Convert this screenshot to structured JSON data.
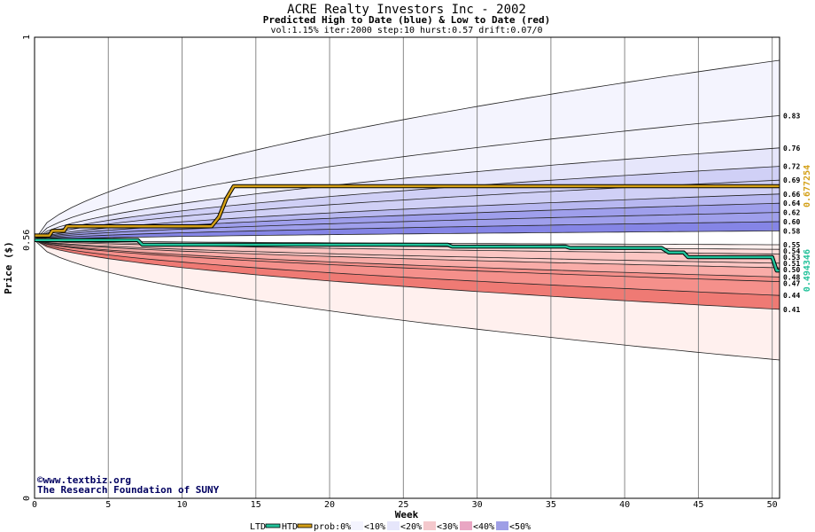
{
  "chart_data": {
    "type": "area",
    "title": "ACRE Realty Investors Inc - 2002",
    "subtitle": "Predicted High to Date (blue) &  Low to Date (red)",
    "params": "vol:1.15% iter:2000 step:10 hurst:0.57 drift:0.07/0",
    "xlabel": "Week",
    "ylabel": "Price ($)",
    "xlim": [
      0,
      50.5
    ],
    "ylim": [
      0,
      1
    ],
    "x_ticks": [
      0,
      5,
      10,
      15,
      20,
      25,
      30,
      35,
      40,
      45,
      50
    ],
    "y_ticks": [
      {
        "value": 0,
        "label": "0"
      },
      {
        "value": 0.56,
        "label": "0.56"
      },
      {
        "value": 1,
        "label": "1"
      }
    ],
    "start_value": 0.56,
    "grid": true,
    "band_levels_upper": [
      0.83,
      0.76,
      0.72,
      0.69,
      0.66,
      0.64,
      0.62,
      0.6,
      0.58
    ],
    "band_levels_lower": [
      0.55,
      0.54,
      0.53,
      0.51,
      0.5,
      0.48,
      0.47,
      0.44,
      0.41
    ],
    "band_labels_upper": [
      "0.83",
      "0.76",
      "0.72",
      "0.69",
      "0.66",
      "0.64",
      "0.62",
      "0.60",
      "0.58"
    ],
    "band_labels_lower": [
      "0.55",
      "0.54",
      "0.53",
      "0.51",
      "0.50",
      "0.48",
      "0.47",
      "0.44",
      "0.41"
    ],
    "outer_envelope": {
      "upper_end": 0.95,
      "lower_end": 0.3
    },
    "series": [
      {
        "name": "HTD",
        "color": "#d4a017",
        "x": [
          0,
          1,
          1.2,
          2,
          2.2,
          12,
          12.5,
          13,
          13.5,
          50.5
        ],
        "values": [
          0.57,
          0.57,
          0.58,
          0.58,
          0.59,
          0.59,
          0.61,
          0.65,
          0.677,
          0.677
        ],
        "end_label": "0.677254"
      },
      {
        "name": "LTD",
        "color": "#22c29a",
        "x": [
          0,
          7,
          7.3,
          28,
          28.3,
          36,
          36.3,
          42.5,
          43,
          44,
          44.3,
          50,
          50.3,
          50.5
        ],
        "values": [
          0.56,
          0.56,
          0.55,
          0.55,
          0.546,
          0.546,
          0.543,
          0.543,
          0.533,
          0.533,
          0.523,
          0.523,
          0.494,
          0.494
        ],
        "end_label": "0.494346"
      }
    ],
    "legend": {
      "placement": "bottom",
      "items": [
        "LTD",
        "HTD",
        "prob:0%",
        "<10%",
        "<20%",
        "<30%",
        "<40%",
        "<50%"
      ]
    },
    "colors": {
      "blue_bands": [
        "#f4f4fe",
        "#e6e6fb",
        "#d0d0f6",
        "#b8b8f1",
        "#9f9fec",
        "#8585e6"
      ],
      "red_bands": [
        "#fff0ee",
        "#ffdddb",
        "#fcc6c3",
        "#f9aca8",
        "#f5908b",
        "#ef7a74"
      ],
      "legend_swatches": [
        "#ffffff",
        "#f4f4fe",
        "#e6e6fb",
        "#f4c8cc",
        "#e9a6c3",
        "#9f9fe6"
      ]
    },
    "watermark": [
      "©www.textbiz.org",
      "The Research Foundation of SUNY"
    ]
  }
}
